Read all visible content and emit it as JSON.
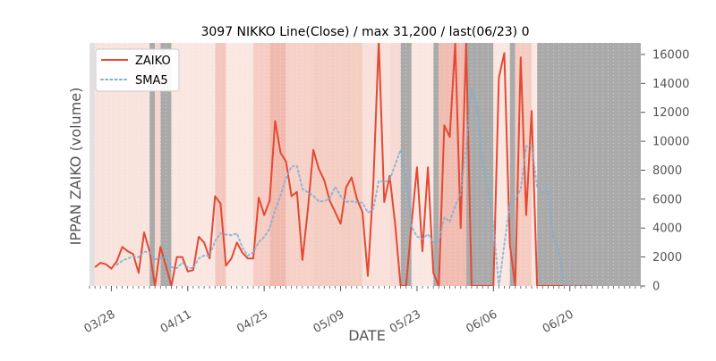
{
  "chart_data": {
    "type": "line",
    "title": "3097 NIKKO Line(Close) / max 31,200 / last(06/23) 0",
    "xlabel": "DATE",
    "ylabel": "IPPAN ZAIKO (volume)",
    "ylim": [
      0,
      16800
    ],
    "xlim": [
      0,
      101
    ],
    "y_axis_side": "right",
    "yticks": [
      0,
      2000,
      4000,
      6000,
      8000,
      10000,
      12000,
      14000,
      16000
    ],
    "ytick_labels": [
      "0",
      "2000",
      "4000",
      "6000",
      "8000",
      "10000",
      "12000",
      "14000",
      "16000"
    ],
    "xticks": [
      {
        "x": 4,
        "label": "03/28"
      },
      {
        "x": 18,
        "label": "04/11"
      },
      {
        "x": 32,
        "label": "04/25"
      },
      {
        "x": 46,
        "label": "05/09"
      },
      {
        "x": 60,
        "label": "05/23"
      },
      {
        "x": 74,
        "label": "06/06"
      },
      {
        "x": 88,
        "label": "06/20"
      }
    ],
    "grid": false,
    "legend_position": "top-left",
    "series": [
      {
        "name": "ZAIKO",
        "color": "#e24a33",
        "style": "solid",
        "x": [
          1,
          2,
          3,
          4,
          5,
          6,
          7,
          8,
          9,
          10,
          11,
          12,
          13,
          14,
          15,
          16,
          17,
          18,
          19,
          20,
          21,
          22,
          23,
          24,
          25,
          26,
          27,
          28,
          29,
          30,
          31,
          32,
          33,
          34,
          35,
          36,
          37,
          38,
          39,
          40,
          41,
          42,
          43,
          44,
          45,
          46,
          47,
          48,
          49,
          50,
          51,
          52,
          53,
          54,
          55,
          56,
          57,
          58,
          59,
          60,
          61,
          62,
          63,
          64,
          65,
          66,
          67,
          68,
          69,
          70,
          71,
          72,
          73,
          74,
          75,
          76,
          77,
          78,
          79,
          80,
          81,
          82,
          83,
          84,
          85,
          86,
          87,
          88,
          89,
          90,
          91,
          92
        ],
        "y": [
          1300,
          1600,
          1500,
          1200,
          1700,
          2700,
          2400,
          2200,
          900,
          3700,
          2400,
          0,
          2700,
          1400,
          0,
          2000,
          2000,
          1000,
          1100,
          3400,
          3000,
          1900,
          6200,
          5700,
          1400,
          1900,
          3000,
          2300,
          1900,
          1900,
          6100,
          4900,
          5900,
          11400,
          9200,
          8600,
          6200,
          6500,
          1800,
          5300,
          9400,
          8100,
          7300,
          5900,
          5100,
          4300,
          6800,
          7500,
          6000,
          5100,
          700,
          7000,
          17000,
          5800,
          7600,
          4300,
          0,
          0,
          4300,
          8200,
          2400,
          8200,
          900,
          0,
          11100,
          10300,
          16800,
          4000,
          16800,
          0,
          0,
          0,
          0,
          0,
          14400,
          16100,
          2900,
          0,
          15800,
          4900,
          12100,
          0,
          0,
          0,
          0,
          0,
          0,
          0,
          0,
          0,
          0,
          0
        ]
      },
      {
        "name": "SMA5",
        "color": "#7eb0d5",
        "style": "dotted",
        "x": [
          5,
          6,
          7,
          8,
          9,
          10,
          11,
          12,
          13,
          14,
          15,
          16,
          17,
          18,
          19,
          20,
          21,
          22,
          23,
          24,
          25,
          26,
          27,
          28,
          29,
          30,
          31,
          32,
          33,
          34,
          35,
          36,
          37,
          38,
          39,
          40,
          41,
          42,
          43,
          44,
          45,
          46,
          47,
          48,
          49,
          50,
          51,
          52,
          53,
          54,
          55,
          56,
          57,
          58,
          59,
          60,
          61,
          62,
          63,
          64,
          65,
          66,
          67,
          68,
          69,
          70,
          71,
          72,
          73,
          74,
          75,
          76,
          77,
          78,
          79,
          80,
          81,
          82,
          83,
          84,
          85,
          86,
          87,
          88,
          89,
          90,
          91,
          92
        ],
        "y": [
          1460,
          1740,
          1900,
          2040,
          1980,
          2380,
          2320,
          1840,
          1940,
          2040,
          1300,
          1220,
          1620,
          1280,
          1220,
          1900,
          2100,
          2080,
          3120,
          3640,
          3560,
          3500,
          3640,
          2660,
          2100,
          2320,
          3040,
          3380,
          3980,
          5240,
          6260,
          7440,
          8260,
          8300,
          6700,
          6480,
          6240,
          5840,
          5860,
          6040,
          6860,
          6200,
          5820,
          5840,
          5780,
          5760,
          5060,
          5320,
          7260,
          7200,
          7300,
          8380,
          9400,
          7500,
          4120,
          3420,
          3240,
          3580,
          3020,
          3060,
          4740,
          4440,
          5540,
          6360,
          9600,
          13640,
          12400,
          8400,
          6700,
          4200,
          0,
          2880,
          5600,
          6040,
          6660,
          9640,
          9760,
          6860,
          6440,
          6560,
          3400,
          2420,
          0,
          0,
          0,
          0,
          0,
          0
        ]
      }
    ],
    "background_bands": [
      {
        "from": 0,
        "to": 1,
        "color": "#e0e0e0",
        "opacity": 1
      },
      {
        "from": 1,
        "to": 11,
        "color": "#f6d7cf",
        "opacity": 0.7
      },
      {
        "from": 11,
        "to": 12,
        "color": "#aaaaaa",
        "opacity": 1
      },
      {
        "from": 12,
        "to": 13,
        "color": "#f1c4b9",
        "opacity": 0.7
      },
      {
        "from": 13,
        "to": 15,
        "color": "#aaaaaa",
        "opacity": 1
      },
      {
        "from": 15,
        "to": 23,
        "color": "#f6d7cf",
        "opacity": 0.6
      },
      {
        "from": 23,
        "to": 25,
        "color": "#f0b9ad",
        "opacity": 0.8
      },
      {
        "from": 25,
        "to": 30,
        "color": "#f6d7cf",
        "opacity": 0.6
      },
      {
        "from": 30,
        "to": 33,
        "color": "#f2c1b5",
        "opacity": 0.8
      },
      {
        "from": 33,
        "to": 36,
        "color": "#efb3a5",
        "opacity": 0.9
      },
      {
        "from": 36,
        "to": 41,
        "color": "#f2c5ba",
        "opacity": 0.8
      },
      {
        "from": 41,
        "to": 50,
        "color": "#f1c0b4",
        "opacity": 0.8
      },
      {
        "from": 50,
        "to": 55,
        "color": "#f6d3cb",
        "opacity": 0.7
      },
      {
        "from": 55,
        "to": 57,
        "color": "#f3cbc1",
        "opacity": 0.7
      },
      {
        "from": 57,
        "to": 59,
        "color": "#aaaaaa",
        "opacity": 1
      },
      {
        "from": 59,
        "to": 63,
        "color": "#f6d7cf",
        "opacity": 0.6
      },
      {
        "from": 63,
        "to": 64,
        "color": "#aaaaaa",
        "opacity": 1
      },
      {
        "from": 64,
        "to": 69,
        "color": "#f0b5a8",
        "opacity": 0.9
      },
      {
        "from": 69,
        "to": 74,
        "color": "#aaaaaa",
        "opacity": 1
      },
      {
        "from": 74,
        "to": 77,
        "color": "#f6d7cf",
        "opacity": 0.6
      },
      {
        "from": 77,
        "to": 78,
        "color": "#aaaaaa",
        "opacity": 1
      },
      {
        "from": 78,
        "to": 81,
        "color": "#f1bfb3",
        "opacity": 0.8
      },
      {
        "from": 81,
        "to": 82,
        "color": "#f6d7cf",
        "opacity": 0.6
      },
      {
        "from": 82,
        "to": 101,
        "color": "#aaaaaa",
        "opacity": 1
      }
    ]
  }
}
